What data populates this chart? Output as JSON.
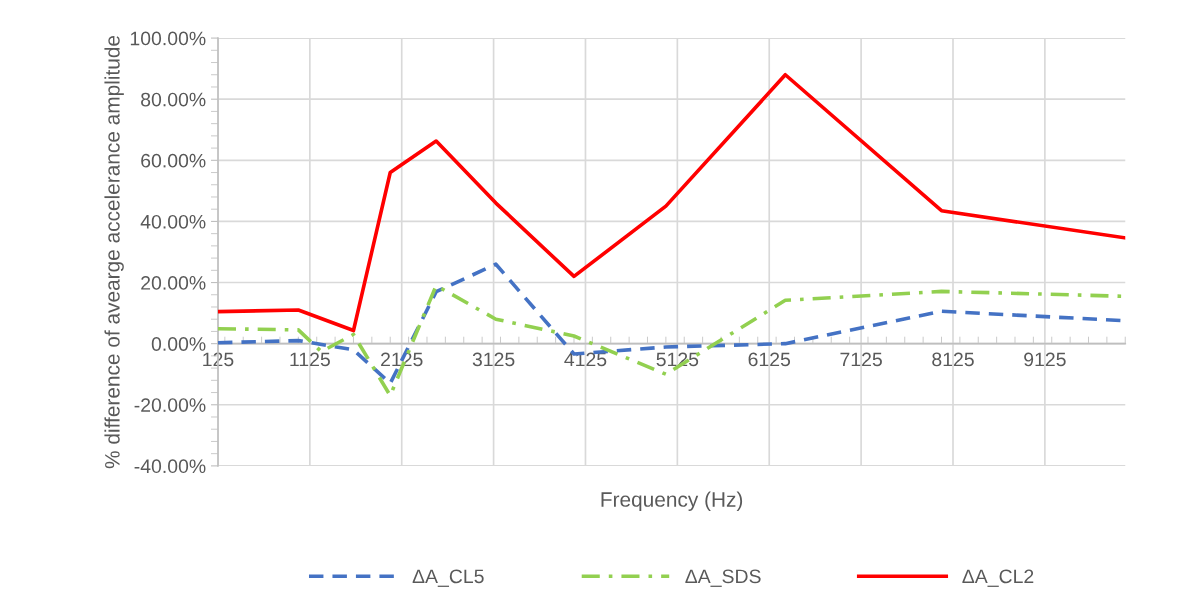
{
  "chart_data": {
    "type": "line",
    "xlabel": "Frequency (Hz)",
    "ylabel": "% difference of avearge accelerance amplitude",
    "xlim": [
      125,
      10000
    ],
    "xticks": [
      125,
      1125,
      2125,
      3125,
      4125,
      5125,
      6125,
      7125,
      8125,
      9125
    ],
    "ylim": [
      -40,
      100
    ],
    "yticks": [
      {
        "value": -40,
        "label": "-40.00%"
      },
      {
        "value": -20,
        "label": "-20.00%"
      },
      {
        "value": 0,
        "label": "0.00%"
      },
      {
        "value": 20,
        "label": "20.00%"
      },
      {
        "value": 40,
        "label": "40.00%"
      },
      {
        "value": 60,
        "label": "60.00%"
      },
      {
        "value": 80,
        "label": "80.00%"
      },
      {
        "value": 100,
        "label": "100.00%"
      }
    ],
    "grid": true,
    "legend": "bottom",
    "marker": "none",
    "series": [
      {
        "name": "ΔA_CL5",
        "color": "#4472c4",
        "line_style": "dashed",
        "x": [
          125,
          1000,
          1600,
          2000,
          2500,
          3150,
          4000,
          5000,
          6300,
          8000,
          10000
        ],
        "values": [
          0.3,
          1,
          -2,
          -13,
          17,
          26,
          -3.4,
          -1.1,
          0,
          10.6,
          7.5
        ]
      },
      {
        "name": "ΔA_SDS",
        "color": "#92d050",
        "line_style": "dashdot",
        "x": [
          125,
          1000,
          1250,
          1600,
          2000,
          2500,
          3150,
          4000,
          5000,
          6300,
          8000,
          10000
        ],
        "values": [
          4.9,
          4.5,
          -2.6,
          3,
          -17,
          19,
          8,
          2.5,
          -10,
          14.2,
          17.1,
          15.5
        ]
      },
      {
        "name": "ΔA_CL2",
        "color": "#ff0000",
        "line_style": "solid",
        "x": [
          125,
          1000,
          1600,
          2000,
          2500,
          3150,
          4000,
          5000,
          6300,
          8000,
          10000
        ],
        "values": [
          10.5,
          11,
          4.3,
          56,
          66.3,
          46,
          22,
          45,
          88,
          43.5,
          34.6
        ]
      }
    ]
  }
}
